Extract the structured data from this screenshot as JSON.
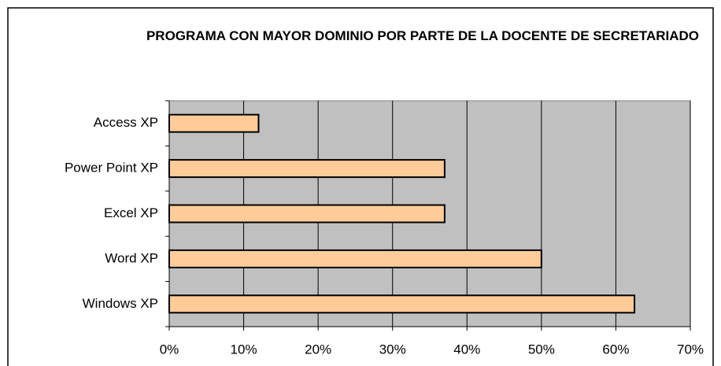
{
  "chart_data": {
    "type": "bar",
    "orientation": "horizontal",
    "title": "PROGRAMA CON MAYOR DOMINIO POR PARTE DE LA DOCENTE DE SECRETARIADO",
    "categories": [
      "Access XP",
      "Power Point XP",
      "Excel XP",
      "Word XP",
      "Windows XP"
    ],
    "values": [
      12,
      37,
      37,
      50,
      62.5
    ],
    "color": "#ffcc99",
    "xlim": [
      0,
      70
    ],
    "xticks": [
      {
        "value": 0,
        "label": "0%"
      },
      {
        "value": 10,
        "label": "10%"
      },
      {
        "value": 20,
        "label": "20%"
      },
      {
        "value": 30,
        "label": "30%"
      },
      {
        "value": 40,
        "label": "40%"
      },
      {
        "value": 50,
        "label": "50%"
      },
      {
        "value": 60,
        "label": "60%"
      },
      {
        "value": 70,
        "label": "70%"
      }
    ],
    "grid": true
  }
}
